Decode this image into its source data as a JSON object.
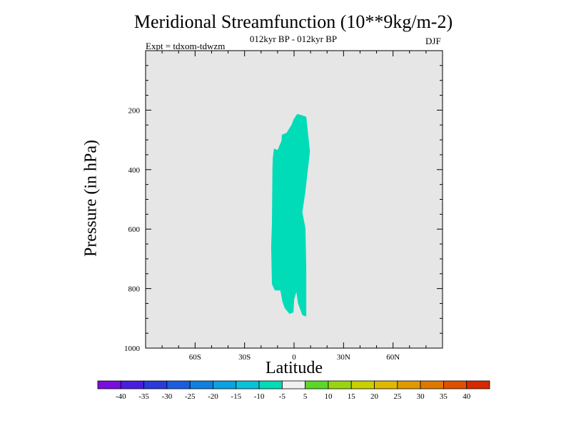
{
  "chart_data": {
    "type": "contour",
    "title": "Meridional Streamfunction (10**9kg/m-2)",
    "subtitle": "012kyr BP - 012kyr BP",
    "experiment": "Expt = tdxom-tdwzm",
    "season": "DJF",
    "xlabel": "Latitude",
    "ylabel": "Pressure (in hPa)",
    "xlim": [
      -90,
      90
    ],
    "ylim": [
      1000,
      0
    ],
    "x_ticks": [
      {
        "value": -60,
        "label": "60S"
      },
      {
        "value": -30,
        "label": "30S"
      },
      {
        "value": 0,
        "label": "0"
      },
      {
        "value": 30,
        "label": "30N"
      },
      {
        "value": 60,
        "label": "60N"
      }
    ],
    "y_ticks": [
      {
        "value": 200,
        "label": "200"
      },
      {
        "value": 400,
        "label": "400"
      },
      {
        "value": 600,
        "label": "600"
      },
      {
        "value": 800,
        "label": "800"
      },
      {
        "value": 1000,
        "label": "1000"
      }
    ],
    "background_color": "#e6e6e6",
    "colorbar": {
      "labels": [
        "-40",
        "-35",
        "-30",
        "-25",
        "-20",
        "-15",
        "-10",
        "-5",
        "5",
        "10",
        "15",
        "20",
        "25",
        "30",
        "35",
        "40"
      ],
      "colors": [
        "#7a0ee0",
        "#4a1ee0",
        "#2a3adc",
        "#1a5ee0",
        "#1080e0",
        "#0aa2e0",
        "#08c2dc",
        "#00dcb8",
        "#f0f0f0",
        "#5ad828",
        "#9ad410",
        "#c8d000",
        "#e0b800",
        "#e09a00",
        "#e07800",
        "#e05000",
        "#d82800"
      ]
    },
    "filled_region": {
      "interval": "-10 to -5",
      "color": "#00dcb8",
      "boundary": [
        [
          1.9,
          213
        ],
        [
          3.6,
          215
        ],
        [
          7.4,
          222
        ],
        [
          9.6,
          339
        ],
        [
          6.9,
          473
        ],
        [
          5.0,
          544
        ],
        [
          6.9,
          596
        ],
        [
          7.4,
          731
        ],
        [
          7.4,
          894
        ],
        [
          5.0,
          889
        ],
        [
          2.4,
          850
        ],
        [
          1.4,
          811
        ],
        [
          0.1,
          836
        ],
        [
          -0.4,
          880
        ],
        [
          -2.8,
          885
        ],
        [
          -5.7,
          865
        ],
        [
          -7.1,
          843
        ],
        [
          -8.3,
          806
        ],
        [
          -11.7,
          806
        ],
        [
          -13.4,
          785
        ],
        [
          -13.9,
          659
        ],
        [
          -13.4,
          578
        ],
        [
          -13.1,
          396
        ],
        [
          -12.9,
          362
        ],
        [
          -12.2,
          329
        ],
        [
          -10.0,
          334
        ],
        [
          -7.6,
          303
        ],
        [
          -7.4,
          283
        ],
        [
          -4.5,
          276
        ],
        [
          -1.4,
          248
        ],
        [
          -0.4,
          232
        ]
      ]
    }
  }
}
